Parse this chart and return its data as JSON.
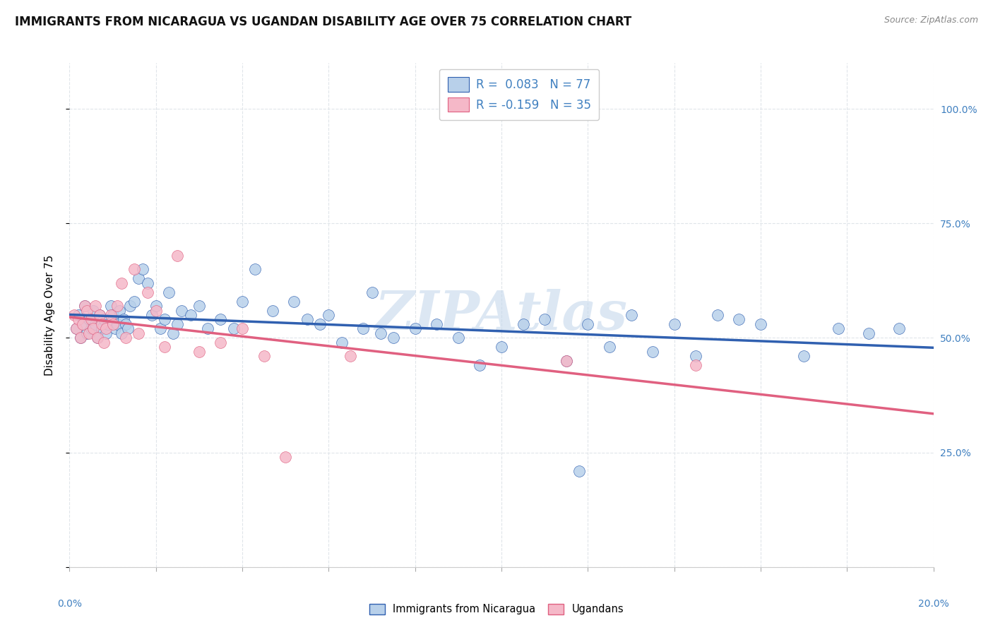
{
  "title": "IMMIGRANTS FROM NICARAGUA VS UGANDAN DISABILITY AGE OVER 75 CORRELATION CHART",
  "source": "Source: ZipAtlas.com",
  "ylabel": "Disability Age Over 75",
  "xlim": [
    0.0,
    20.0
  ],
  "ylim": [
    0.0,
    110.0
  ],
  "legend1_R": "0.083",
  "legend1_N": "77",
  "legend2_R": "-0.159",
  "legend2_N": "35",
  "blue_color": "#b8d0ea",
  "pink_color": "#f5b8c8",
  "blue_line_color": "#3060b0",
  "pink_line_color": "#e06080",
  "blue_scatter_x": [
    0.15,
    0.2,
    0.25,
    0.3,
    0.35,
    0.4,
    0.45,
    0.5,
    0.55,
    0.6,
    0.65,
    0.7,
    0.75,
    0.8,
    0.85,
    0.9,
    0.95,
    1.0,
    1.05,
    1.1,
    1.15,
    1.2,
    1.25,
    1.3,
    1.35,
    1.4,
    1.5,
    1.6,
    1.7,
    1.8,
    1.9,
    2.0,
    2.1,
    2.2,
    2.3,
    2.4,
    2.5,
    2.6,
    2.8,
    3.0,
    3.2,
    3.5,
    3.8,
    4.0,
    4.3,
    4.7,
    5.2,
    5.5,
    5.8,
    6.0,
    6.3,
    6.8,
    7.0,
    7.2,
    7.5,
    8.0,
    8.5,
    9.0,
    9.5,
    10.0,
    10.5,
    11.0,
    11.5,
    12.0,
    12.5,
    13.0,
    13.5,
    14.0,
    14.5,
    15.0,
    15.5,
    16.0,
    17.0,
    17.8,
    18.5,
    19.2,
    11.8
  ],
  "blue_scatter_y": [
    52,
    55,
    50,
    53,
    57,
    51,
    54,
    52,
    56,
    53,
    50,
    55,
    52,
    54,
    51,
    53,
    57,
    55,
    52,
    53,
    56,
    51,
    54,
    53,
    52,
    57,
    58,
    63,
    65,
    62,
    55,
    57,
    52,
    54,
    60,
    51,
    53,
    56,
    55,
    57,
    52,
    54,
    52,
    58,
    65,
    56,
    58,
    54,
    53,
    55,
    49,
    52,
    60,
    51,
    50,
    52,
    53,
    50,
    44,
    48,
    53,
    54,
    45,
    53,
    48,
    55,
    47,
    53,
    46,
    55,
    54,
    53,
    46,
    52,
    51,
    52,
    21
  ],
  "pink_scatter_x": [
    0.1,
    0.15,
    0.2,
    0.25,
    0.3,
    0.35,
    0.4,
    0.45,
    0.5,
    0.55,
    0.6,
    0.65,
    0.7,
    0.75,
    0.8,
    0.85,
    0.95,
    1.0,
    1.1,
    1.2,
    1.3,
    1.5,
    1.6,
    1.8,
    2.0,
    2.2,
    2.5,
    3.0,
    3.5,
    4.0,
    4.5,
    5.0,
    6.5,
    11.5,
    14.5
  ],
  "pink_scatter_y": [
    55,
    52,
    54,
    50,
    53,
    57,
    56,
    51,
    54,
    52,
    57,
    50,
    55,
    53,
    49,
    52,
    55,
    53,
    57,
    62,
    50,
    65,
    51,
    60,
    56,
    48,
    68,
    47,
    49,
    52,
    46,
    24,
    46,
    45,
    44
  ],
  "watermark": "ZIPAtlas",
  "watermark_color": "#c5d8ec",
  "grid_color": "#e0e5ea",
  "title_fontsize": 12,
  "axis_label_fontsize": 11,
  "tick_fontsize": 10,
  "right_tick_color": "#4080c0"
}
